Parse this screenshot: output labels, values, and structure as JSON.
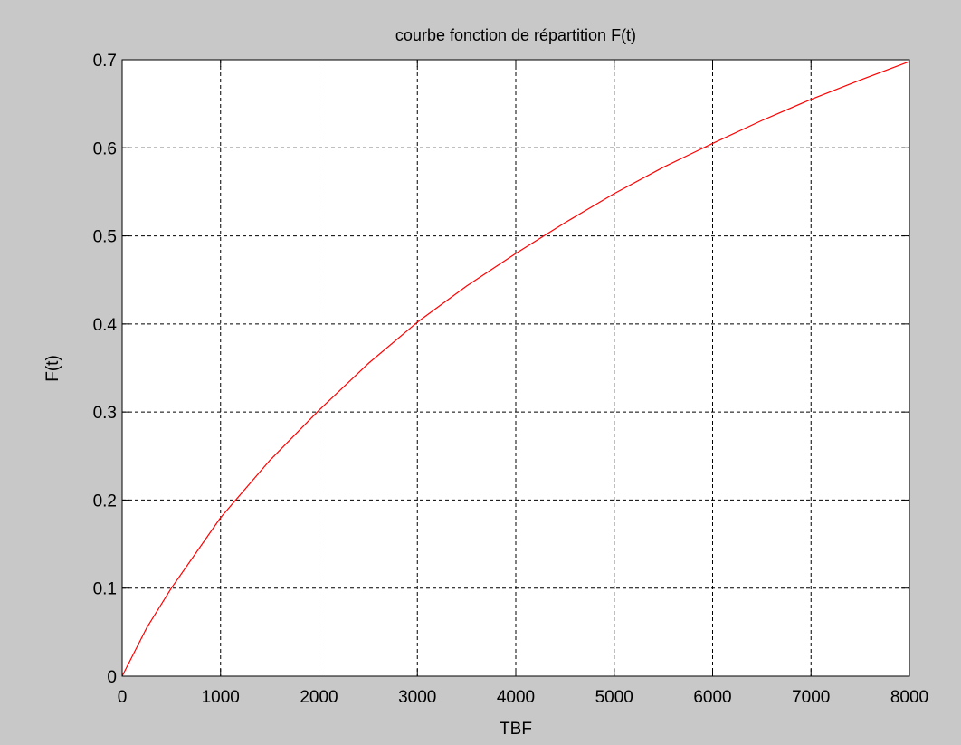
{
  "chart_data": {
    "type": "line",
    "title": "courbe fonction de répartition F(t)",
    "xlabel": "TBF",
    "ylabel": "F(t)",
    "xlim": [
      0,
      8000
    ],
    "ylim": [
      0,
      0.7
    ],
    "x_ticks": [
      0,
      1000,
      2000,
      3000,
      4000,
      5000,
      6000,
      7000,
      8000
    ],
    "x_tick_labels": [
      "0",
      "1000",
      "2000",
      "3000",
      "4000",
      "5000",
      "6000",
      "7000",
      "8000"
    ],
    "y_ticks": [
      0,
      0.1,
      0.2,
      0.3,
      0.4,
      0.5,
      0.6,
      0.7
    ],
    "y_tick_labels": [
      "0",
      "0.1",
      "0.2",
      "0.3",
      "0.4",
      "0.5",
      "0.6",
      "0.7"
    ],
    "grid": true,
    "background_color": "#c8c8c8",
    "plot_background_color": "#ffffff",
    "series": [
      {
        "color": "#ff0000",
        "x": [
          0,
          250,
          500,
          1000,
          1500,
          2000,
          2500,
          3000,
          3500,
          4000,
          4500,
          5000,
          5500,
          6000,
          6500,
          7000,
          7500,
          8000
        ],
        "y": [
          0,
          0.055,
          0.1,
          0.18,
          0.245,
          0.302,
          0.355,
          0.402,
          0.443,
          0.48,
          0.515,
          0.548,
          0.578,
          0.605,
          0.631,
          0.655,
          0.677,
          0.698
        ]
      }
    ]
  }
}
